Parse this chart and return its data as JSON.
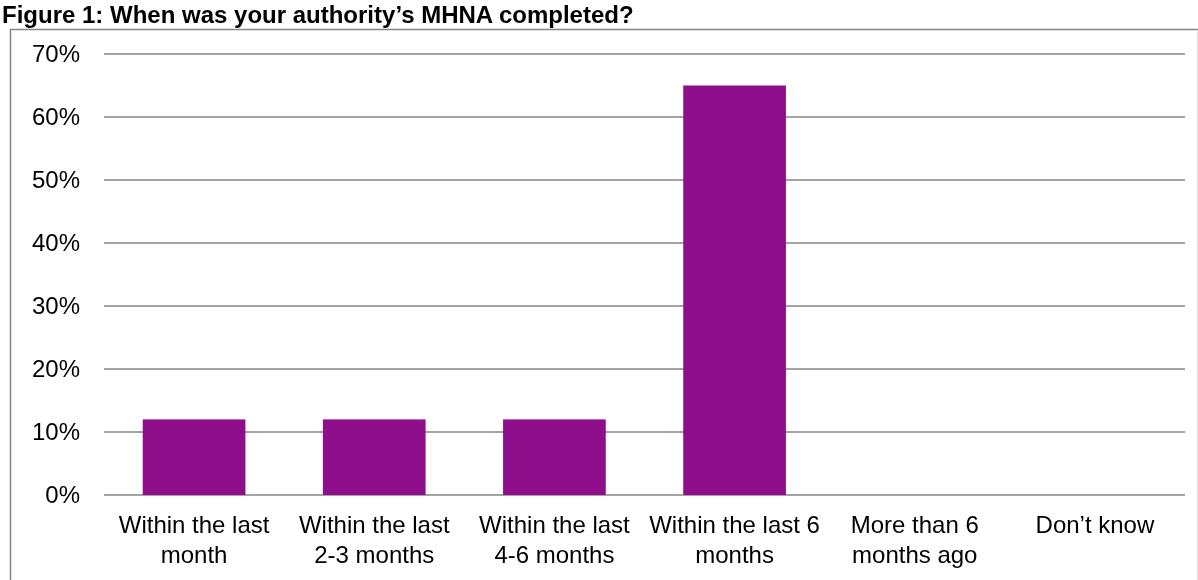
{
  "chart_data": {
    "type": "bar",
    "title": "Figure 1: When was your authority’s MHNA completed?",
    "categories": [
      "Within the last month",
      "Within the last 2-3 months",
      "Within the last 4-6 months",
      "Within the last 6 months",
      "More than 6 months ago",
      "Don’t know"
    ],
    "values": [
      12,
      12,
      12,
      65,
      0,
      0
    ],
    "color": "#8f0e8c",
    "ylim": [
      0,
      70
    ],
    "yticks": [
      {
        "value": 0,
        "label": "0%"
      },
      {
        "value": 10,
        "label": "10%"
      },
      {
        "value": 20,
        "label": "20%"
      },
      {
        "value": 30,
        "label": "30%"
      },
      {
        "value": 40,
        "label": "40%"
      },
      {
        "value": 50,
        "label": "50%"
      },
      {
        "value": 60,
        "label": "60%"
      },
      {
        "value": 70,
        "label": "70%"
      }
    ],
    "grid": "y"
  }
}
